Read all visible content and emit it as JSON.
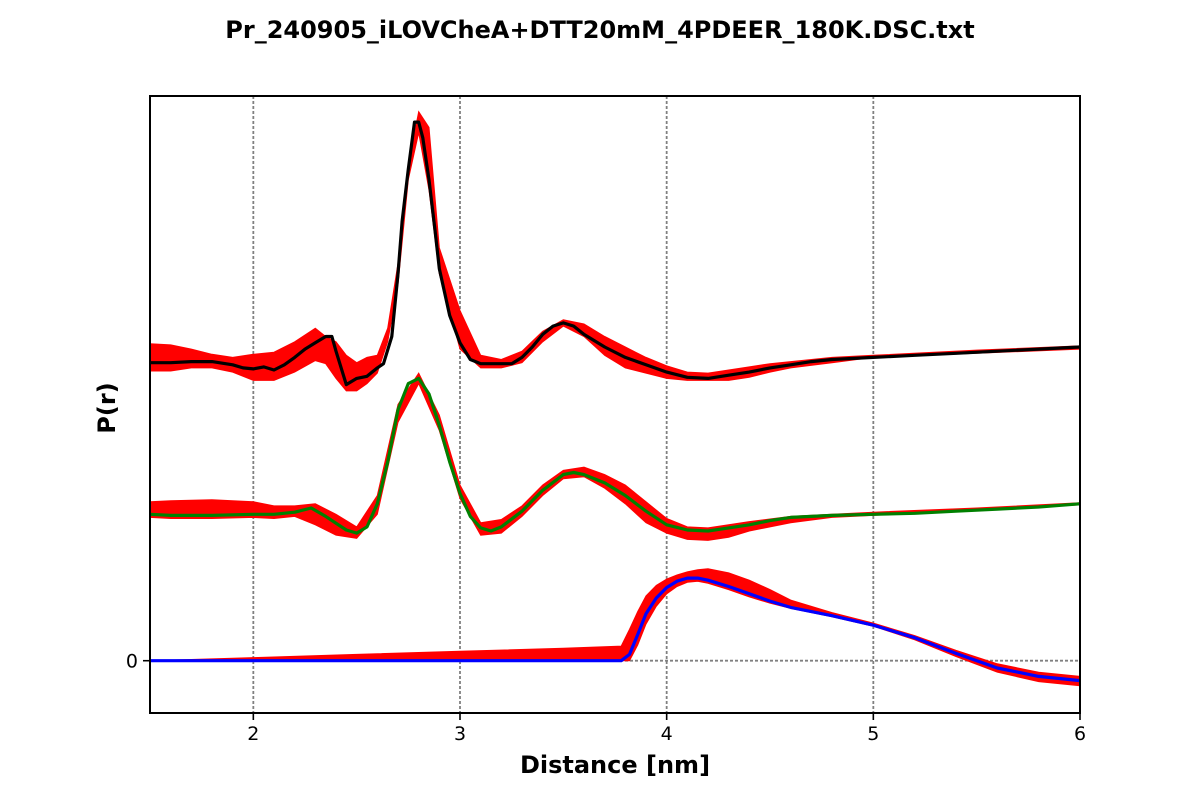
{
  "chart_data": {
    "type": "line",
    "title": "Pr_240905_iLOVCheA+DTT20mM_4PDEER_180K.DSC.txt",
    "xlabel": "Distance [nm]",
    "ylabel": "P(r)",
    "xlim": [
      1.5,
      6.0
    ],
    "ylim": [
      -0.05,
      0.54
    ],
    "xticks": [
      "2",
      "3",
      "4",
      "5",
      "6"
    ],
    "yticks": [
      "0"
    ],
    "grid": true,
    "zero_line": true,
    "colors": {
      "band": "#ff0000",
      "black": "#000000",
      "green": "#008000",
      "blue": "#0000ff",
      "grid": "#808080"
    },
    "series": [
      {
        "color": "#000000",
        "x": [
          1.5,
          1.6,
          1.7,
          1.8,
          1.9,
          1.95,
          2.0,
          2.05,
          2.1,
          2.15,
          2.2,
          2.25,
          2.3,
          2.35,
          2.38,
          2.4,
          2.45,
          2.5,
          2.55,
          2.6,
          2.63,
          2.67,
          2.7,
          2.72,
          2.75,
          2.78,
          2.8,
          2.82,
          2.85,
          2.88,
          2.9,
          2.95,
          3.0,
          3.05,
          3.1,
          3.15,
          3.2,
          3.25,
          3.3,
          3.35,
          3.4,
          3.45,
          3.5,
          3.55,
          3.6,
          3.7,
          3.8,
          3.9,
          4.0,
          4.1,
          4.2,
          4.3,
          4.4,
          4.5,
          4.6,
          4.7,
          4.8,
          5.0,
          5.2,
          5.4,
          5.6,
          5.8,
          6.0
        ],
        "y": [
          0.285,
          0.285,
          0.286,
          0.286,
          0.283,
          0.28,
          0.279,
          0.281,
          0.278,
          0.283,
          0.29,
          0.298,
          0.304,
          0.31,
          0.31,
          0.296,
          0.264,
          0.27,
          0.272,
          0.28,
          0.284,
          0.31,
          0.37,
          0.42,
          0.47,
          0.515,
          0.515,
          0.5,
          0.46,
          0.41,
          0.375,
          0.33,
          0.304,
          0.288,
          0.284,
          0.284,
          0.284,
          0.284,
          0.29,
          0.3,
          0.312,
          0.32,
          0.323,
          0.32,
          0.312,
          0.3,
          0.29,
          0.283,
          0.276,
          0.271,
          0.27,
          0.273,
          0.276,
          0.28,
          0.283,
          0.286,
          0.288,
          0.29,
          0.292,
          0.294,
          0.296,
          0.298,
          0.3
        ]
      },
      {
        "color": "#008000",
        "x": [
          1.5,
          1.6,
          1.8,
          2.0,
          2.1,
          2.2,
          2.28,
          2.35,
          2.45,
          2.5,
          2.55,
          2.6,
          2.65,
          2.7,
          2.75,
          2.8,
          2.85,
          2.9,
          2.95,
          3.0,
          3.05,
          3.1,
          3.15,
          3.2,
          3.3,
          3.4,
          3.5,
          3.55,
          3.6,
          3.7,
          3.8,
          3.9,
          4.0,
          4.1,
          4.2,
          4.3,
          4.4,
          4.5,
          4.6,
          4.8,
          5.0,
          5.2,
          5.4,
          5.6,
          5.8,
          6.0
        ],
        "y": [
          0.14,
          0.139,
          0.139,
          0.14,
          0.14,
          0.142,
          0.146,
          0.138,
          0.125,
          0.122,
          0.128,
          0.15,
          0.19,
          0.24,
          0.265,
          0.27,
          0.255,
          0.225,
          0.19,
          0.16,
          0.138,
          0.127,
          0.124,
          0.128,
          0.143,
          0.163,
          0.178,
          0.18,
          0.178,
          0.17,
          0.158,
          0.143,
          0.13,
          0.125,
          0.124,
          0.127,
          0.13,
          0.134,
          0.137,
          0.139,
          0.14,
          0.141,
          0.143,
          0.145,
          0.147,
          0.15
        ]
      },
      {
        "color": "#0000ff",
        "x": [
          1.5,
          2.0,
          2.5,
          3.0,
          3.5,
          3.78,
          3.82,
          3.86,
          3.9,
          3.95,
          4.0,
          4.05,
          4.1,
          4.15,
          4.2,
          4.3,
          4.4,
          4.5,
          4.6,
          4.8,
          5.0,
          5.2,
          5.4,
          5.6,
          5.8,
          6.0
        ],
        "y": [
          0.0,
          0.0,
          0.0,
          0.0,
          0.0,
          0.0,
          0.006,
          0.025,
          0.045,
          0.06,
          0.07,
          0.076,
          0.079,
          0.079,
          0.077,
          0.071,
          0.064,
          0.057,
          0.051,
          0.043,
          0.034,
          0.022,
          0.007,
          -0.007,
          -0.015,
          -0.019
        ]
      }
    ],
    "bands": [
      {
        "color": "#ff0000",
        "x": [
          1.5,
          1.6,
          1.7,
          1.8,
          1.9,
          2.0,
          2.1,
          2.2,
          2.3,
          2.35,
          2.4,
          2.45,
          2.5,
          2.55,
          2.6,
          2.65,
          2.7,
          2.75,
          2.8,
          2.85,
          2.9,
          3.0,
          3.1,
          3.2,
          3.3,
          3.4,
          3.5,
          3.6,
          3.7,
          3.8,
          3.9,
          4.0,
          4.1,
          4.2,
          4.3,
          4.4,
          4.5,
          4.6,
          4.8,
          5.0,
          5.5,
          6.0
        ],
        "lo": [
          0.277,
          0.277,
          0.28,
          0.28,
          0.276,
          0.268,
          0.268,
          0.276,
          0.287,
          0.284,
          0.27,
          0.258,
          0.258,
          0.265,
          0.275,
          0.305,
          0.36,
          0.46,
          0.505,
          0.45,
          0.37,
          0.298,
          0.28,
          0.28,
          0.285,
          0.305,
          0.32,
          0.31,
          0.292,
          0.28,
          0.275,
          0.27,
          0.268,
          0.268,
          0.268,
          0.271,
          0.276,
          0.28,
          0.285,
          0.29,
          0.294,
          0.298
        ],
        "hi": [
          0.303,
          0.302,
          0.298,
          0.293,
          0.29,
          0.293,
          0.295,
          0.305,
          0.318,
          0.31,
          0.305,
          0.292,
          0.285,
          0.29,
          0.292,
          0.318,
          0.38,
          0.475,
          0.525,
          0.51,
          0.395,
          0.335,
          0.292,
          0.288,
          0.296,
          0.315,
          0.326,
          0.322,
          0.31,
          0.3,
          0.29,
          0.282,
          0.276,
          0.275,
          0.278,
          0.281,
          0.284,
          0.286,
          0.29,
          0.292,
          0.297,
          0.301
        ]
      },
      {
        "color": "#ff0000",
        "x": [
          1.5,
          1.6,
          1.8,
          2.0,
          2.1,
          2.2,
          2.3,
          2.4,
          2.5,
          2.6,
          2.7,
          2.8,
          2.9,
          3.0,
          3.1,
          3.2,
          3.3,
          3.4,
          3.5,
          3.6,
          3.7,
          3.8,
          3.9,
          4.0,
          4.1,
          4.2,
          4.3,
          4.4,
          4.6,
          4.8,
          5.0,
          5.5,
          6.0
        ],
        "lo": [
          0.137,
          0.136,
          0.136,
          0.137,
          0.136,
          0.138,
          0.13,
          0.12,
          0.117,
          0.14,
          0.228,
          0.265,
          0.22,
          0.155,
          0.12,
          0.122,
          0.138,
          0.158,
          0.174,
          0.176,
          0.165,
          0.15,
          0.132,
          0.122,
          0.116,
          0.115,
          0.118,
          0.124,
          0.132,
          0.137,
          0.139,
          0.144,
          0.149
        ],
        "hi": [
          0.152,
          0.153,
          0.154,
          0.152,
          0.148,
          0.148,
          0.15,
          0.14,
          0.128,
          0.158,
          0.245,
          0.275,
          0.235,
          0.168,
          0.132,
          0.135,
          0.148,
          0.168,
          0.182,
          0.185,
          0.178,
          0.168,
          0.152,
          0.136,
          0.128,
          0.127,
          0.13,
          0.133,
          0.138,
          0.14,
          0.142,
          0.146,
          0.151
        ]
      },
      {
        "color": "#ff0000",
        "x": [
          1.5,
          2.0,
          2.5,
          3.0,
          3.5,
          3.78,
          3.82,
          3.86,
          3.9,
          3.95,
          4.0,
          4.05,
          4.1,
          4.15,
          4.2,
          4.3,
          4.4,
          4.5,
          4.6,
          4.8,
          5.0,
          5.2,
          5.4,
          5.6,
          5.8,
          6.0
        ],
        "lo": [
          0.0,
          0.0,
          0.0,
          0.0,
          0.0,
          0.0,
          0.0,
          0.015,
          0.035,
          0.052,
          0.064,
          0.071,
          0.075,
          0.076,
          0.074,
          0.068,
          0.061,
          0.055,
          0.05,
          0.042,
          0.033,
          0.02,
          0.004,
          -0.011,
          -0.02,
          -0.024
        ],
        "hi": [
          0.0,
          0.003,
          0.006,
          0.009,
          0.012,
          0.014,
          0.03,
          0.047,
          0.062,
          0.072,
          0.078,
          0.082,
          0.085,
          0.087,
          0.088,
          0.084,
          0.077,
          0.068,
          0.058,
          0.046,
          0.036,
          0.024,
          0.01,
          -0.003,
          -0.011,
          -0.015
        ]
      }
    ]
  }
}
